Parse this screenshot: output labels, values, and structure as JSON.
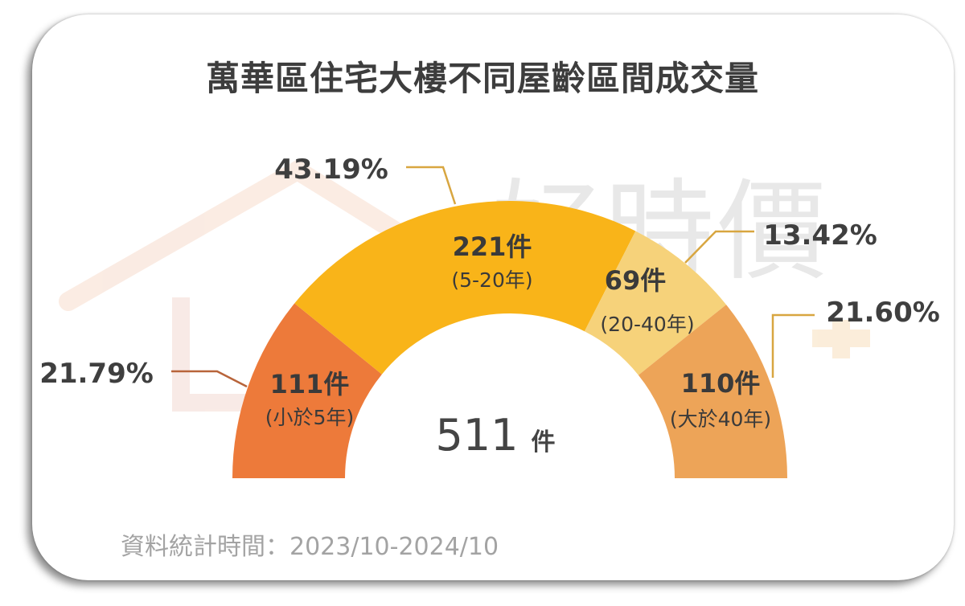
{
  "title": "萬華區住宅大樓不同屋齡區間成交量",
  "footer": "資料統計時間：2023/10-2024/10",
  "watermark": "好時價",
  "total": {
    "value": "511",
    "unit": "件"
  },
  "chart_data": {
    "type": "pie",
    "variant": "half-donut",
    "title": "萬華區住宅大樓不同屋齡區間成交量",
    "total": 511,
    "slices": [
      {
        "count_label": "111件",
        "category": "(小於5年)",
        "value": 111,
        "percent": 21.79,
        "percent_label": "21.79%",
        "color": "#ED7A3A"
      },
      {
        "count_label": "221件",
        "category": "(5-20年)",
        "value": 221,
        "percent": 43.19,
        "percent_label": "43.19%",
        "color": "#F9B419"
      },
      {
        "count_label": "69件",
        "category": "(20-40年)",
        "value": 69,
        "percent": 13.42,
        "percent_label": "13.42%",
        "color": "#F6D27A"
      },
      {
        "count_label": "110件",
        "category": "(大於40年)",
        "value": 110,
        "percent": 21.6,
        "percent_label": "21.60%",
        "color": "#EDA458"
      }
    ],
    "leader_color": "#D8A640"
  }
}
